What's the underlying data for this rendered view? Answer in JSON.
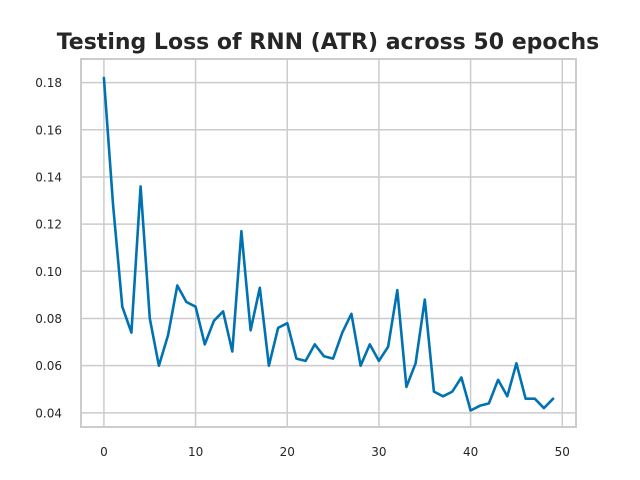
{
  "chart_data": {
    "type": "line",
    "title": "Testing Loss of RNN (ATR) across 50 epochs",
    "xlabel": "",
    "ylabel": "",
    "xlim": [
      -2.5,
      51.5
    ],
    "ylim": [
      0.034,
      0.19
    ],
    "grid": true,
    "x_ticks": [
      0,
      10,
      20,
      30,
      40,
      50
    ],
    "y_ticks": [
      0.04,
      0.06,
      0.08,
      0.1,
      0.12,
      0.14,
      0.16,
      0.18
    ],
    "x_tick_labels": [
      "0",
      "10",
      "20",
      "30",
      "40",
      "50"
    ],
    "y_tick_labels": [
      "0.04",
      "0.06",
      "0.08",
      "0.10",
      "0.12",
      "0.14",
      "0.16",
      "0.18"
    ],
    "series": [
      {
        "color": "#0072B2",
        "x": [
          0,
          1,
          2,
          3,
          4,
          5,
          6,
          7,
          8,
          9,
          10,
          11,
          12,
          13,
          14,
          15,
          16,
          17,
          18,
          19,
          20,
          21,
          22,
          23,
          24,
          25,
          26,
          27,
          28,
          29,
          30,
          31,
          32,
          33,
          34,
          35,
          36,
          37,
          38,
          39,
          40,
          41,
          42,
          43,
          44,
          45,
          46,
          47,
          48,
          49
        ],
        "values": [
          0.182,
          0.128,
          0.085,
          0.074,
          0.136,
          0.08,
          0.06,
          0.073,
          0.094,
          0.087,
          0.085,
          0.069,
          0.079,
          0.083,
          0.066,
          0.117,
          0.075,
          0.093,
          0.06,
          0.076,
          0.078,
          0.063,
          0.062,
          0.069,
          0.064,
          0.063,
          0.074,
          0.082,
          0.06,
          0.069,
          0.062,
          0.068,
          0.092,
          0.051,
          0.061,
          0.088,
          0.049,
          0.047,
          0.049,
          0.055,
          0.041,
          0.043,
          0.044,
          0.054,
          0.047,
          0.061,
          0.046,
          0.046,
          0.042,
          0.046
        ]
      }
    ]
  }
}
